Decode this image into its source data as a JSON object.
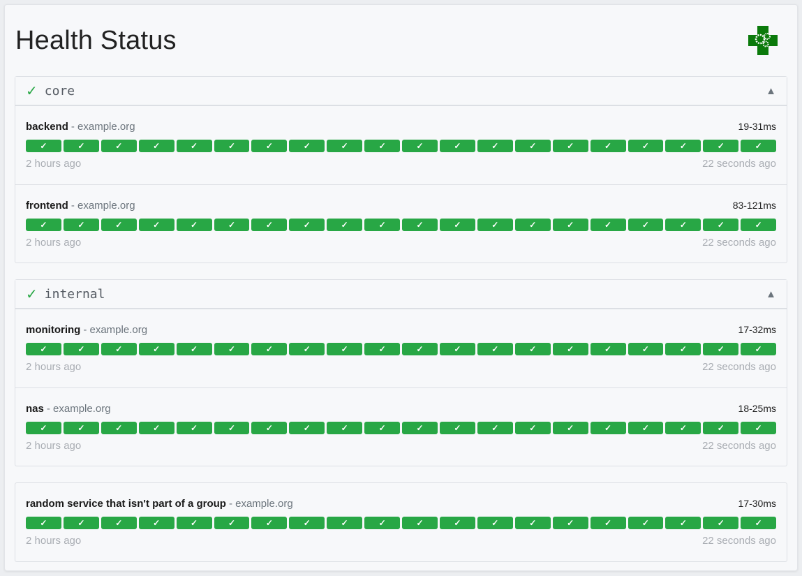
{
  "header": {
    "title": "Health Status",
    "logo": "health-cross-gears-logo"
  },
  "colors": {
    "success": "#28a745",
    "muted": "#a9adb3"
  },
  "groups": [
    {
      "name": "core",
      "status_icon": "✓",
      "toggle_icon": "▲",
      "services": [
        {
          "name": "backend",
          "host": "example.org",
          "response_time": "19-31ms",
          "oldest": "2 hours ago",
          "newest": "22 seconds ago",
          "results": 20
        },
        {
          "name": "frontend",
          "host": "example.org",
          "response_time": "83-121ms",
          "oldest": "2 hours ago",
          "newest": "22 seconds ago",
          "results": 20
        }
      ]
    },
    {
      "name": "internal",
      "status_icon": "✓",
      "toggle_icon": "▲",
      "services": [
        {
          "name": "monitoring",
          "host": "example.org",
          "response_time": "17-32ms",
          "oldest": "2 hours ago",
          "newest": "22 seconds ago",
          "results": 20
        },
        {
          "name": "nas",
          "host": "example.org",
          "response_time": "18-25ms",
          "oldest": "2 hours ago",
          "newest": "22 seconds ago",
          "results": 20
        }
      ]
    }
  ],
  "ungrouped": [
    {
      "name": "random service that isn't part of a group",
      "host": "example.org",
      "response_time": "17-30ms",
      "oldest": "2 hours ago",
      "newest": "22 seconds ago",
      "results": 20
    }
  ],
  "result_icon": "✓",
  "host_separator": "-"
}
